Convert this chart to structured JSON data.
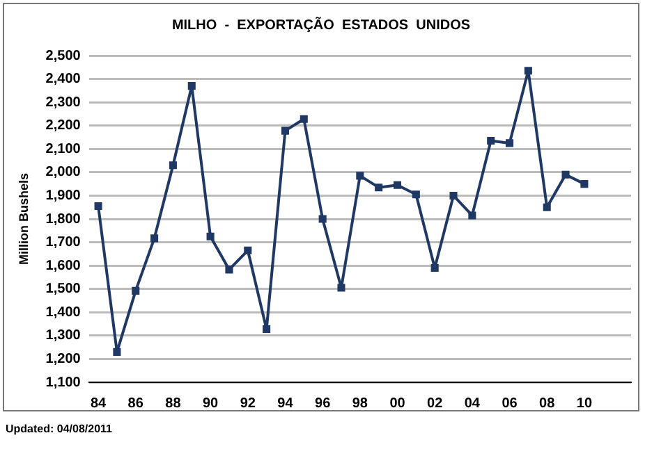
{
  "chart_data": {
    "type": "line",
    "title": "MILHO  -  EXPORTAÇÃO  ESTADOS  UNIDOS",
    "ylabel": "Million Bushels",
    "categories": [
      "84",
      null,
      "86",
      null,
      "88",
      null,
      "90",
      null,
      "92",
      null,
      "94",
      null,
      "96",
      null,
      "98",
      null,
      "00",
      null,
      "02",
      null,
      "04",
      null,
      "06",
      null,
      "08",
      null,
      "10",
      null,
      null
    ],
    "series": [
      {
        "color": "#1f3864",
        "values": [
          1855,
          1230,
          1492,
          1717,
          2030,
          2370,
          1725,
          1583,
          1665,
          1328,
          2178,
          2228,
          1800,
          1505,
          1985,
          1935,
          1945,
          1905,
          1590,
          1900,
          1815,
          2135,
          2125,
          2435,
          1850,
          1990,
          1950,
          null,
          null
        ]
      }
    ],
    "ylim": [
      1100,
      2500
    ],
    "yticks": [
      {
        "value": 1100,
        "label": "1,100"
      },
      {
        "value": 1200,
        "label": "1,200"
      },
      {
        "value": 1300,
        "label": "1,300"
      },
      {
        "value": 1400,
        "label": "1,400"
      },
      {
        "value": 1500,
        "label": "1,500"
      },
      {
        "value": 1600,
        "label": "1,600"
      },
      {
        "value": 1700,
        "label": "1,700"
      },
      {
        "value": 1800,
        "label": "1,800"
      },
      {
        "value": 1900,
        "label": "1,900"
      },
      {
        "value": 2000,
        "label": "2,000"
      },
      {
        "value": 2100,
        "label": "2,100"
      },
      {
        "value": 2200,
        "label": "2,200"
      },
      {
        "value": 2300,
        "label": "2,300"
      },
      {
        "value": 2400,
        "label": "2,400"
      },
      {
        "value": 2500,
        "label": "2,500"
      }
    ],
    "grid": "y",
    "legend": false,
    "marker": "square",
    "line_style": "solid",
    "annotations": [
      "Updated: 04/08/2011"
    ]
  }
}
